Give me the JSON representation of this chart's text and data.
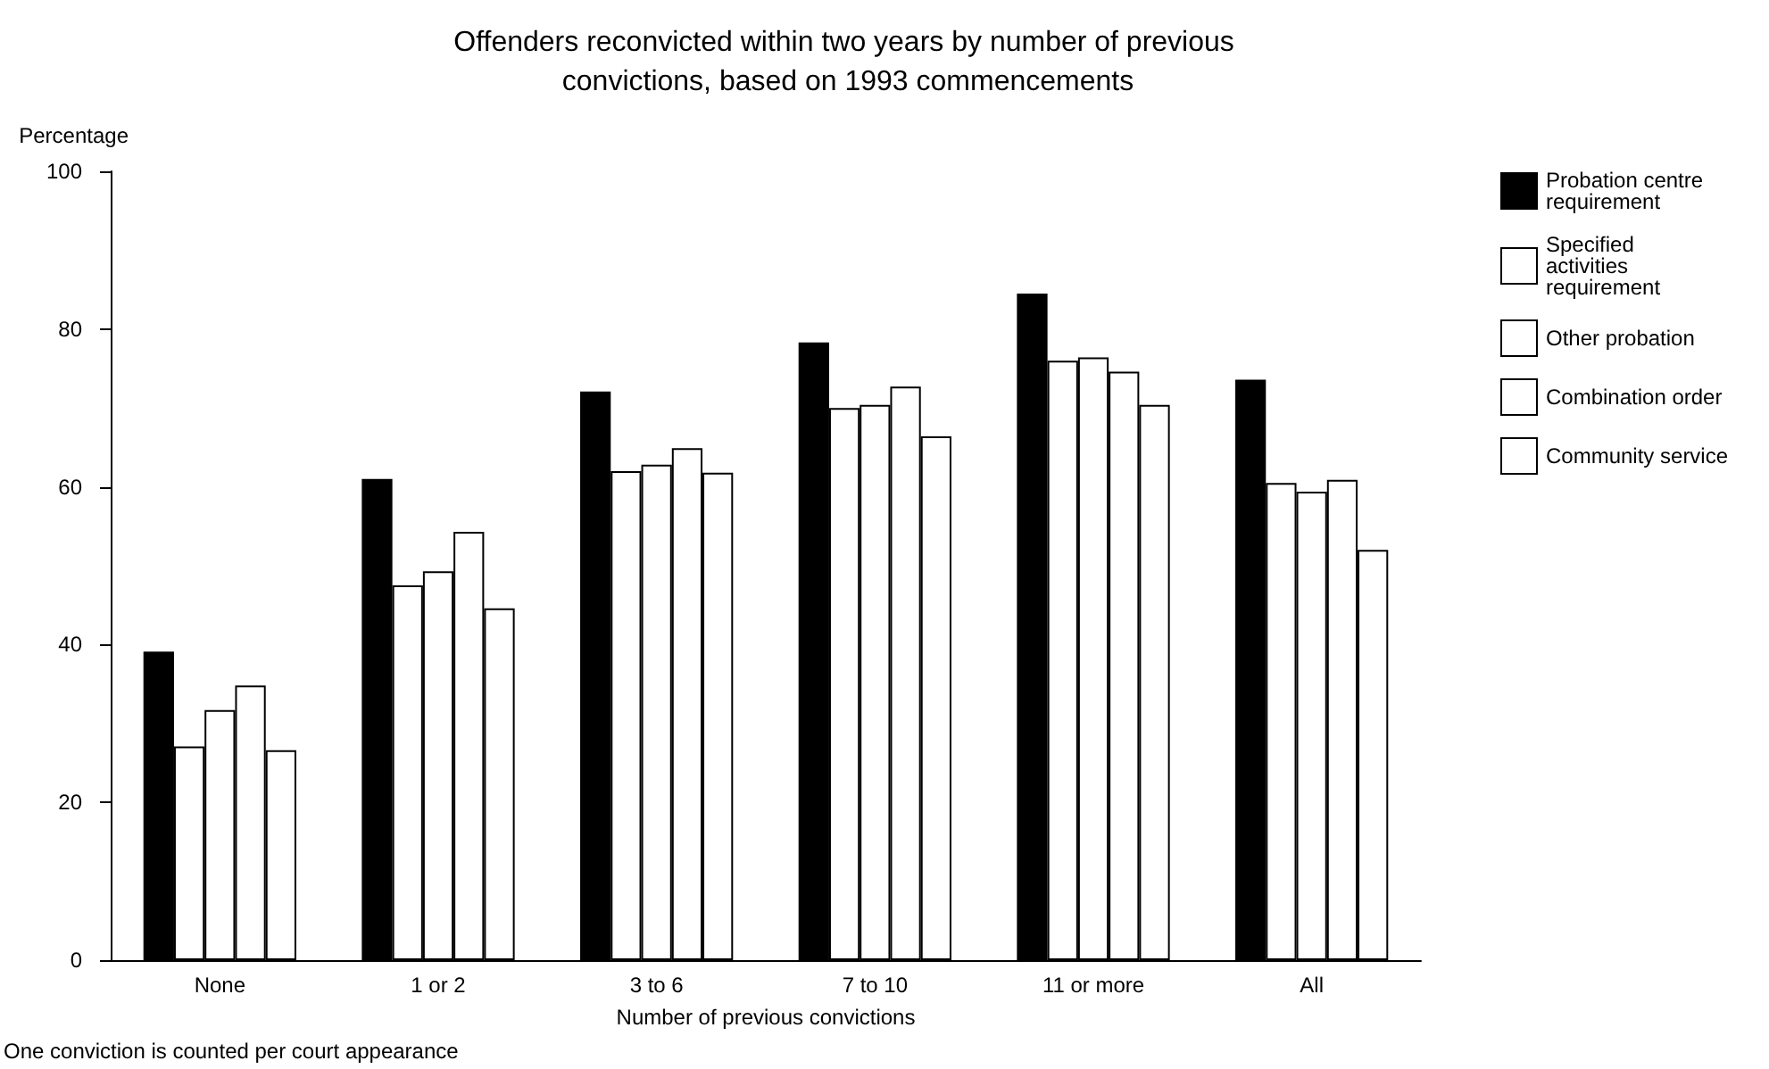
{
  "chart_data": {
    "type": "bar",
    "title": "Offenders reconvicted within two years by number of previous convictions, based on 1993 commencements",
    "xlabel": "Number of previous convictions",
    "ylabel": "Percentage",
    "categories": [
      "None",
      "1 or 2",
      "3 to 6",
      "7 to 10",
      "11 or more",
      "All"
    ],
    "series": [
      {
        "name": "Probation centre requirement",
        "color": "#000000",
        "values": [
          39.1,
          61.0,
          72.1,
          78.3,
          84.5,
          73.6
        ]
      },
      {
        "name": "Specified activities requirement",
        "color": "#ffffff",
        "values": [
          27.1,
          47.5,
          62.0,
          70.0,
          76.0,
          60.5
        ]
      },
      {
        "name": "Other probation",
        "color": "#ffffff",
        "values": [
          31.7,
          49.3,
          62.8,
          70.4,
          76.4,
          59.4
        ]
      },
      {
        "name": "Combination order",
        "color": "#ffffff",
        "values": [
          34.8,
          54.3,
          64.9,
          72.7,
          74.6,
          60.9
        ]
      },
      {
        "name": "Community service",
        "color": "#ffffff",
        "values": [
          26.6,
          44.6,
          61.8,
          66.4,
          70.4,
          52.0
        ]
      }
    ],
    "ylim": [
      0,
      100
    ],
    "yticks": [
      0,
      20,
      40,
      60,
      80,
      100
    ],
    "grid": false,
    "legend": "top right",
    "annotations": [
      "One conviction is counted per court appearance"
    ]
  }
}
